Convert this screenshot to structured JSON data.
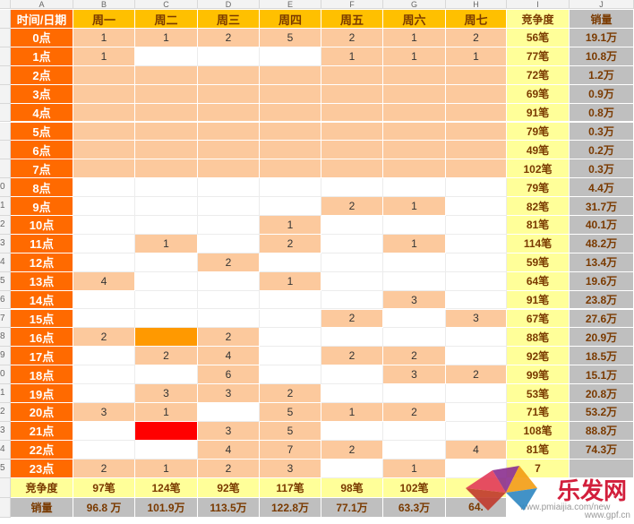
{
  "col_letters": [
    "A",
    "B",
    "C",
    "D",
    "E",
    "F",
    "G",
    "H",
    "I",
    "J"
  ],
  "header": {
    "time": "时间/日期",
    "days": [
      "周一",
      "周二",
      "周三",
      "周四",
      "周五",
      "周六",
      "周七"
    ],
    "competition": "竞争度",
    "sales": "销量"
  },
  "rows": [
    {
      "n": "",
      "time": "0点",
      "vals": [
        "1",
        "1",
        "2",
        "5",
        "2",
        "1",
        "2"
      ],
      "comp": "56笔",
      "sales": "19.1万"
    },
    {
      "n": "",
      "time": "1点",
      "vals": [
        "1",
        "",
        "",
        "",
        "1",
        "1",
        "1"
      ],
      "comp": "77笔",
      "sales": "10.8万"
    },
    {
      "n": "",
      "time": "2点",
      "vals": [
        "",
        "",
        "",
        "",
        "",
        "",
        ""
      ],
      "comp": "72笔",
      "sales": "1.2万"
    },
    {
      "n": "",
      "time": "3点",
      "vals": [
        "",
        "",
        "",
        "",
        "",
        "",
        ""
      ],
      "comp": "69笔",
      "sales": "0.9万"
    },
    {
      "n": "",
      "time": "4点",
      "vals": [
        "",
        "",
        "",
        "",
        "",
        "",
        ""
      ],
      "comp": "91笔",
      "sales": "0.8万"
    },
    {
      "n": "",
      "time": "5点",
      "vals": [
        "",
        "",
        "",
        "",
        "",
        "",
        ""
      ],
      "comp": "79笔",
      "sales": "0.3万"
    },
    {
      "n": "",
      "time": "6点",
      "vals": [
        "",
        "",
        "",
        "",
        "",
        "",
        ""
      ],
      "comp": "49笔",
      "sales": "0.2万"
    },
    {
      "n": "",
      "time": "7点",
      "vals": [
        "",
        "",
        "",
        "",
        "",
        "",
        ""
      ],
      "comp": "102笔",
      "sales": "0.3万"
    },
    {
      "n": "0",
      "time": "8点",
      "vals": [
        "",
        "",
        "",
        "",
        "",
        "",
        ""
      ],
      "comp": "79笔",
      "sales": "4.4万"
    },
    {
      "n": "1",
      "time": "9点",
      "vals": [
        "",
        "",
        "",
        "",
        "2",
        "1",
        ""
      ],
      "comp": "82笔",
      "sales": "31.7万"
    },
    {
      "n": "2",
      "time": "10点",
      "vals": [
        "",
        "",
        "",
        "1",
        "",
        "",
        ""
      ],
      "comp": "81笔",
      "sales": "40.1万"
    },
    {
      "n": "3",
      "time": "11点",
      "vals": [
        "",
        "1",
        "",
        "2",
        "",
        "1",
        ""
      ],
      "comp": "114笔",
      "sales": "48.2万"
    },
    {
      "n": "4",
      "time": "12点",
      "vals": [
        "",
        "",
        "2",
        "",
        "",
        "",
        ""
      ],
      "comp": "59笔",
      "sales": "13.4万"
    },
    {
      "n": "5",
      "time": "13点",
      "vals": [
        "4",
        "",
        "",
        "1",
        "",
        "",
        ""
      ],
      "comp": "64笔",
      "sales": "19.6万"
    },
    {
      "n": "6",
      "time": "14点",
      "vals": [
        "",
        "",
        "",
        "",
        "",
        "3",
        ""
      ],
      "comp": "91笔",
      "sales": "23.8万"
    },
    {
      "n": "7",
      "time": "15点",
      "vals": [
        "",
        "",
        "",
        "",
        "2",
        "",
        "3"
      ],
      "comp": "67笔",
      "sales": "27.6万"
    },
    {
      "n": "8",
      "time": "16点",
      "vals": [
        "2",
        "",
        "2",
        "",
        "",
        "",
        ""
      ],
      "comp": "88笔",
      "sales": "20.9万"
    },
    {
      "n": "9",
      "time": "17点",
      "vals": [
        "",
        "2",
        "4",
        "",
        "2",
        "2",
        ""
      ],
      "comp": "92笔",
      "sales": "18.5万"
    },
    {
      "n": "0",
      "time": "18点",
      "vals": [
        "",
        "",
        "6",
        "",
        "",
        "3",
        "2"
      ],
      "comp": "99笔",
      "sales": "15.1万"
    },
    {
      "n": "1",
      "time": "19点",
      "vals": [
        "",
        "3",
        "3",
        "2",
        "",
        "",
        ""
      ],
      "comp": "53笔",
      "sales": "20.8万"
    },
    {
      "n": "2",
      "time": "20点",
      "vals": [
        "3",
        "1",
        "",
        "5",
        "1",
        "2",
        ""
      ],
      "comp": "71笔",
      "sales": "53.2万"
    },
    {
      "n": "3",
      "time": "21点",
      "vals": [
        "",
        "",
        "3",
        "5",
        "",
        "",
        ""
      ],
      "comp": "108笔",
      "sales": "88.8万"
    },
    {
      "n": "4",
      "time": "22点",
      "vals": [
        "",
        "",
        "4",
        "7",
        "2",
        "",
        "4"
      ],
      "comp": "81笔",
      "sales": "74.3万"
    },
    {
      "n": "5",
      "time": "23点",
      "vals": [
        "2",
        "1",
        "2",
        "3",
        "",
        "1",
        ""
      ],
      "comp": "7",
      "sales": ""
    }
  ],
  "footer": {
    "comp_label": "竞争度",
    "comp_vals": [
      "97笔",
      "124笔",
      "92笔",
      "117笔",
      "98笔",
      "102笔",
      ""
    ],
    "sales_label": "销量",
    "sales_vals": [
      "96.8 万",
      "101.9万",
      "113.5万",
      "122.8万",
      "77.1万",
      "63.3万",
      "64."
    ]
  },
  "watermark": "www.pmiaijia.com/new",
  "watermark2": "www.gpf.cn",
  "logo_text": "乐发网",
  "colors": {
    "orange_dark": "#ff6a00",
    "peach": "#fcc99d",
    "header_gold": "#ffc000",
    "comp_yellow": "#ffff99",
    "sales_gray": "#bfbfbf",
    "strong_orange": "#ff9900",
    "red": "#ff0000"
  }
}
